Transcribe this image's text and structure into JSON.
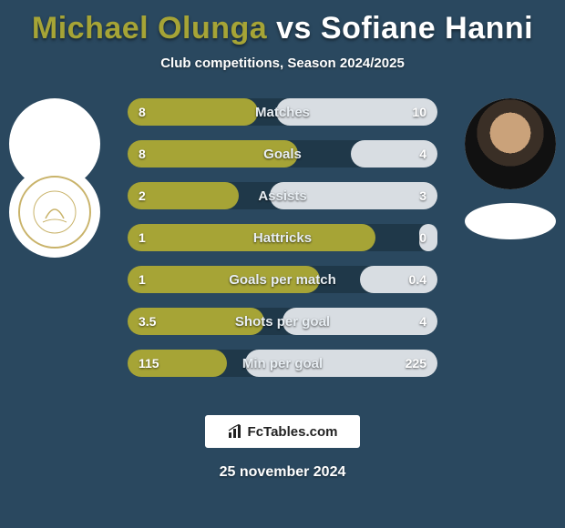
{
  "background_color": "#2a485f",
  "row_bg_color": "#1f3849",
  "title": {
    "player1": "Michael Olunga",
    "player1_color": "#a6a436",
    "vs": "vs",
    "player2": "Sofiane Hanni",
    "player2_color": "#ffffff",
    "fontsize": 34
  },
  "subtitle": "Club competitions, Season 2024/2025",
  "player1_bar_color": "#a6a436",
  "player2_bar_color": "#d8dde2",
  "label_color": "#e8eef3",
  "value_color": "#ffffff",
  "stats": [
    {
      "label": "Matches",
      "v1": "8",
      "v2": "10",
      "w1": 42,
      "w2": 52
    },
    {
      "label": "Goals",
      "v1": "8",
      "v2": "4",
      "w1": 55,
      "w2": 28
    },
    {
      "label": "Assists",
      "v1": "2",
      "v2": "3",
      "w1": 36,
      "w2": 54
    },
    {
      "label": "Hattricks",
      "v1": "1",
      "v2": "0",
      "w1": 80,
      "w2": 6
    },
    {
      "label": "Goals per match",
      "v1": "1",
      "v2": "0.4",
      "w1": 62,
      "w2": 25
    },
    {
      "label": "Shots per goal",
      "v1": "3.5",
      "v2": "4",
      "w1": 44,
      "w2": 50
    },
    {
      "label": "Min per goal",
      "v1": "115",
      "v2": "225",
      "w1": 32,
      "w2": 62
    }
  ],
  "brand": "FcTables.com",
  "date": "25 november 2024"
}
